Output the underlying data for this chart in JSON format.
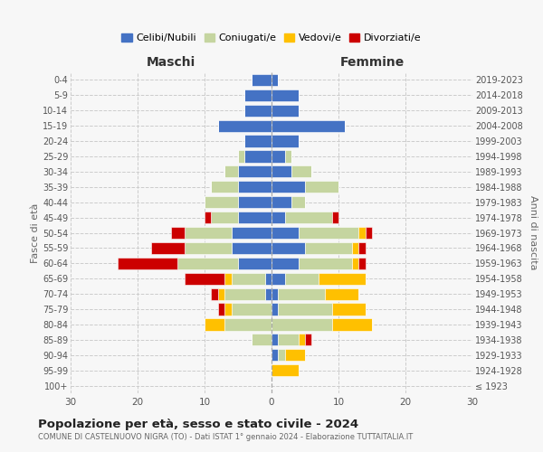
{
  "age_groups": [
    "100+",
    "95-99",
    "90-94",
    "85-89",
    "80-84",
    "75-79",
    "70-74",
    "65-69",
    "60-64",
    "55-59",
    "50-54",
    "45-49",
    "40-44",
    "35-39",
    "30-34",
    "25-29",
    "20-24",
    "15-19",
    "10-14",
    "5-9",
    "0-4"
  ],
  "birth_years": [
    "≤ 1923",
    "1924-1928",
    "1929-1933",
    "1934-1938",
    "1939-1943",
    "1944-1948",
    "1949-1953",
    "1954-1958",
    "1959-1963",
    "1964-1968",
    "1969-1973",
    "1974-1978",
    "1979-1983",
    "1984-1988",
    "1989-1993",
    "1994-1998",
    "1999-2003",
    "2004-2008",
    "2009-2013",
    "2014-2018",
    "2019-2023"
  ],
  "colors": {
    "celibi": "#4472c4",
    "coniugati": "#c5d5a0",
    "vedovi": "#ffc000",
    "divorziati": "#cc0000"
  },
  "maschi": {
    "celibi": [
      0,
      0,
      0,
      0,
      0,
      0,
      1,
      1,
      5,
      6,
      6,
      5,
      5,
      5,
      5,
      4,
      4,
      8,
      4,
      4,
      3
    ],
    "coniugati": [
      0,
      0,
      0,
      3,
      7,
      6,
      6,
      5,
      9,
      7,
      7,
      4,
      5,
      4,
      2,
      1,
      0,
      0,
      0,
      0,
      0
    ],
    "vedovi": [
      0,
      0,
      0,
      0,
      3,
      1,
      1,
      1,
      0,
      0,
      0,
      0,
      0,
      0,
      0,
      0,
      0,
      0,
      0,
      0,
      0
    ],
    "divorziati": [
      0,
      0,
      0,
      0,
      0,
      1,
      1,
      6,
      9,
      5,
      2,
      1,
      0,
      0,
      0,
      0,
      0,
      0,
      0,
      0,
      0
    ]
  },
  "femmine": {
    "celibi": [
      0,
      0,
      1,
      1,
      0,
      1,
      1,
      2,
      4,
      5,
      4,
      2,
      3,
      5,
      3,
      2,
      4,
      11,
      4,
      4,
      1
    ],
    "coniugati": [
      0,
      0,
      1,
      3,
      9,
      8,
      7,
      5,
      8,
      7,
      9,
      7,
      2,
      5,
      3,
      1,
      0,
      0,
      0,
      0,
      0
    ],
    "vedovi": [
      0,
      4,
      3,
      1,
      6,
      5,
      5,
      7,
      1,
      1,
      1,
      0,
      0,
      0,
      0,
      0,
      0,
      0,
      0,
      0,
      0
    ],
    "divorziati": [
      0,
      0,
      0,
      1,
      0,
      0,
      0,
      0,
      1,
      1,
      1,
      1,
      0,
      0,
      0,
      0,
      0,
      0,
      0,
      0,
      0
    ]
  },
  "xlim": 30,
  "title": "Popolazione per età, sesso e stato civile - 2024",
  "subtitle": "COMUNE DI CASTELNUOVO NIGRA (TO) - Dati ISTAT 1° gennaio 2024 - Elaborazione TUTTAITALIA.IT",
  "legend_labels": [
    "Celibi/Nubili",
    "Coniugati/e",
    "Vedovi/e",
    "Divorziati/e"
  ],
  "ylabel_left": "Fasce di età",
  "ylabel_right": "Anni di nascita",
  "xlabel_maschi": "Maschi",
  "xlabel_femmine": "Femmine",
  "bg_color": "#f7f7f7"
}
